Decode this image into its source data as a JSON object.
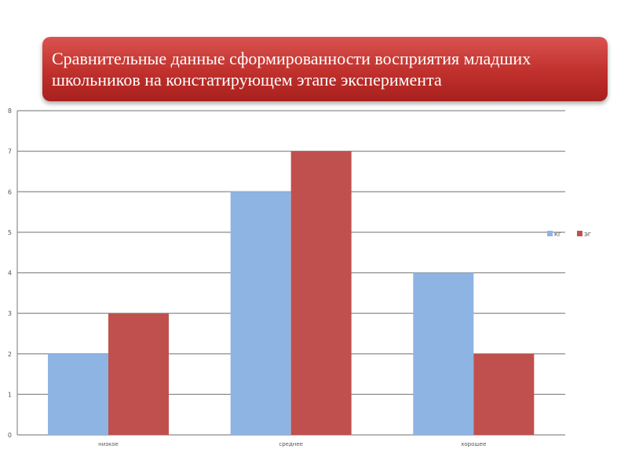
{
  "title": "Сравнительные данные сформированности восприятия младших школьников на констатирующем этапе эксперимента",
  "chart_data": {
    "type": "bar",
    "title": "Сравнительные данные сформированности восприятия младших школьников на констатирующем этапе эксперимента",
    "categories": [
      "низкое",
      "среднее",
      "хорошее"
    ],
    "series": [
      {
        "name": "КГ",
        "values": [
          2,
          6,
          4
        ],
        "color": "#8eb4e3"
      },
      {
        "name": "ЭГ",
        "values": [
          3,
          7,
          2
        ],
        "color": "#c0504d"
      }
    ],
    "ylim": [
      0,
      8
    ],
    "yticks": [
      "0",
      "1",
      "2",
      "3",
      "4",
      "5",
      "6",
      "7",
      "8"
    ],
    "grid": true,
    "legend_position": "right",
    "xlabel": "",
    "ylabel": ""
  }
}
